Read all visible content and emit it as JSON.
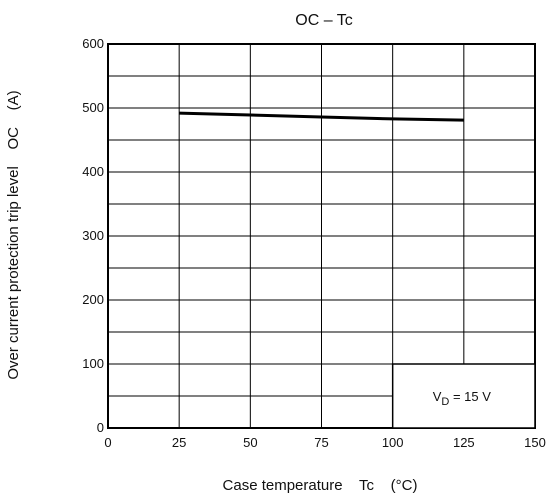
{
  "chart_data": {
    "type": "line",
    "title": "OC – Tc",
    "xlabel": "Case temperature    Tc    (°C)",
    "ylabel": "Over current protection trip level    OC    (A)",
    "xlim": [
      0,
      150
    ],
    "ylim": [
      0,
      600
    ],
    "x_ticks": [
      "0",
      "25",
      "50",
      "75",
      "100",
      "125",
      "150"
    ],
    "y_ticks": [
      "0",
      "100",
      "200",
      "300",
      "400",
      "500",
      "600"
    ],
    "grid": true,
    "grid_minor_y_step": 50,
    "series": [
      {
        "x": [
          25,
          50,
          75,
          100,
          125
        ],
        "y": [
          492,
          489,
          486,
          483,
          481
        ],
        "color": "#000000"
      }
    ],
    "annotation": {
      "main": "V",
      "sub": "D",
      "tail": " = 15 V"
    }
  }
}
